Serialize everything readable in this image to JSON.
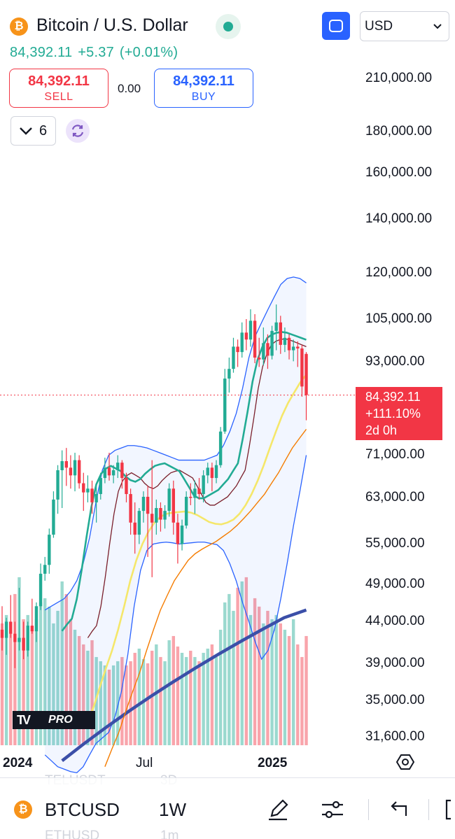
{
  "header": {
    "coin_glyph": "₿",
    "title": "Bitcoin / U.S. Dollar",
    "currency": "USD",
    "last_price": "84,392.11",
    "change": "+5.37",
    "change_pct": "(+0.01%)",
    "sell_price": "84,392.11",
    "sell_label": "SELL",
    "spread": "0.00",
    "buy_price": "84,392.11",
    "buy_label": "BUY",
    "collapse_count": "6"
  },
  "price_axis": [
    "210,000.00",
    "180,000.00",
    "160,000.00",
    "140,000.00",
    "120,000.00",
    "105,000.00",
    "93,000.00",
    "71,000.00",
    "63,000.00",
    "55,000.00",
    "49,000.00",
    "44,000.00",
    "39,000.00",
    "35,000.00",
    "31,600.00"
  ],
  "last_tag": {
    "price": "84,392.11",
    "pct": "+111.10%",
    "countdown": "2d 0h"
  },
  "time_axis": [
    "2024",
    "Jul",
    "2025"
  ],
  "logo": {
    "mark": "TV",
    "pro": "PRO"
  },
  "ghost_rows": [
    {
      "sym": "TELUSDT",
      "tf": "3D"
    },
    {
      "sym": "ETHUSD",
      "tf": "1m"
    }
  ],
  "bottom_bar": {
    "symbol": "BTCUSD",
    "timeframe": "1W"
  },
  "colors": {
    "up": "#22ab94",
    "down": "#f23645",
    "accent": "#2962ff"
  },
  "icons": [
    "bitcoin-icon",
    "live-indicator-icon",
    "fullscreen-icon",
    "chevron-down-icon",
    "sync-icon",
    "settings-icon",
    "draw-pen-icon",
    "indicators-icon",
    "undo-icon"
  ],
  "chart_data": {
    "type": "candlestick",
    "timeframe": "1W",
    "last_price": 84392.11,
    "candles": [
      {
        "o": 43000,
        "h": 46000,
        "l": 40500,
        "c": 42000
      },
      {
        "o": 42000,
        "h": 44500,
        "l": 40000,
        "c": 44000
      },
      {
        "o": 44000,
        "h": 47500,
        "l": 42000,
        "c": 42500
      },
      {
        "o": 42500,
        "h": 44000,
        "l": 38500,
        "c": 41500
      },
      {
        "o": 41500,
        "h": 48500,
        "l": 40500,
        "c": 42000
      },
      {
        "o": 42000,
        "h": 44000,
        "l": 39500,
        "c": 40500
      },
      {
        "o": 40500,
        "h": 44000,
        "l": 39800,
        "c": 43500
      },
      {
        "o": 43500,
        "h": 47000,
        "l": 42500,
        "c": 42800
      },
      {
        "o": 42800,
        "h": 46500,
        "l": 41500,
        "c": 46000
      },
      {
        "o": 46000,
        "h": 52000,
        "l": 45500,
        "c": 50500
      },
      {
        "o": 50500,
        "h": 53000,
        "l": 49500,
        "c": 51800
      },
      {
        "o": 51800,
        "h": 57500,
        "l": 50500,
        "c": 56500
      },
      {
        "o": 56500,
        "h": 64000,
        "l": 56000,
        "c": 62500
      },
      {
        "o": 62500,
        "h": 69000,
        "l": 60000,
        "c": 68000
      },
      {
        "o": 68000,
        "h": 72000,
        "l": 61000,
        "c": 69800
      },
      {
        "o": 69800,
        "h": 72500,
        "l": 65000,
        "c": 68500
      },
      {
        "o": 68500,
        "h": 71000,
        "l": 64500,
        "c": 67000
      },
      {
        "o": 67000,
        "h": 71500,
        "l": 64000,
        "c": 70000
      },
      {
        "o": 70000,
        "h": 71000,
        "l": 64500,
        "c": 65500
      },
      {
        "o": 65500,
        "h": 67500,
        "l": 60500,
        "c": 63800
      },
      {
        "o": 63800,
        "h": 67000,
        "l": 62000,
        "c": 64500
      },
      {
        "o": 64500,
        "h": 66000,
        "l": 60000,
        "c": 62000
      },
      {
        "o": 62000,
        "h": 65000,
        "l": 58500,
        "c": 63500
      },
      {
        "o": 63500,
        "h": 67500,
        "l": 62500,
        "c": 66500
      },
      {
        "o": 66500,
        "h": 70500,
        "l": 65500,
        "c": 68500
      },
      {
        "o": 68500,
        "h": 71500,
        "l": 66000,
        "c": 67000
      },
      {
        "o": 67000,
        "h": 69000,
        "l": 65500,
        "c": 68000
      },
      {
        "o": 68000,
        "h": 71000,
        "l": 66500,
        "c": 69500
      },
      {
        "o": 69500,
        "h": 70000,
        "l": 64500,
        "c": 66500
      },
      {
        "o": 66500,
        "h": 67500,
        "l": 62000,
        "c": 63500
      },
      {
        "o": 63500,
        "h": 64500,
        "l": 56500,
        "c": 58500
      },
      {
        "o": 58500,
        "h": 62000,
        "l": 53500,
        "c": 56500
      },
      {
        "o": 56500,
        "h": 61000,
        "l": 55000,
        "c": 60500
      },
      {
        "o": 60500,
        "h": 64000,
        "l": 58500,
        "c": 63000
      },
      {
        "o": 63000,
        "h": 65000,
        "l": 53000,
        "c": 60000
      },
      {
        "o": 60000,
        "h": 70000,
        "l": 50000,
        "c": 58500
      },
      {
        "o": 58500,
        "h": 62500,
        "l": 56500,
        "c": 61000
      },
      {
        "o": 61000,
        "h": 62000,
        "l": 57000,
        "c": 59000
      },
      {
        "o": 59000,
        "h": 61500,
        "l": 57500,
        "c": 60500
      },
      {
        "o": 60500,
        "h": 65500,
        "l": 59500,
        "c": 64500
      },
      {
        "o": 64500,
        "h": 66000,
        "l": 56500,
        "c": 58500
      },
      {
        "o": 58500,
        "h": 60000,
        "l": 52000,
        "c": 55000
      },
      {
        "o": 55000,
        "h": 59000,
        "l": 54000,
        "c": 58000
      },
      {
        "o": 58000,
        "h": 64000,
        "l": 57500,
        "c": 63000
      },
      {
        "o": 63000,
        "h": 65500,
        "l": 61500,
        "c": 62800
      },
      {
        "o": 62800,
        "h": 66000,
        "l": 60000,
        "c": 64500
      },
      {
        "o": 64500,
        "h": 66500,
        "l": 62500,
        "c": 63500
      },
      {
        "o": 63500,
        "h": 68000,
        "l": 62000,
        "c": 67000
      },
      {
        "o": 67000,
        "h": 69500,
        "l": 65500,
        "c": 68500
      },
      {
        "o": 68500,
        "h": 69500,
        "l": 64000,
        "c": 66500
      },
      {
        "o": 66500,
        "h": 70000,
        "l": 65500,
        "c": 69000
      },
      {
        "o": 69000,
        "h": 77000,
        "l": 68500,
        "c": 76000
      },
      {
        "o": 76000,
        "h": 91000,
        "l": 75500,
        "c": 88500
      },
      {
        "o": 88500,
        "h": 94000,
        "l": 85000,
        "c": 91000
      },
      {
        "o": 91000,
        "h": 99500,
        "l": 90000,
        "c": 97000
      },
      {
        "o": 97000,
        "h": 99000,
        "l": 91500,
        "c": 95500
      },
      {
        "o": 95500,
        "h": 104000,
        "l": 94000,
        "c": 101000
      },
      {
        "o": 101000,
        "h": 105000,
        "l": 96000,
        "c": 99000
      },
      {
        "o": 99000,
        "h": 108000,
        "l": 97000,
        "c": 104500
      },
      {
        "o": 104500,
        "h": 106500,
        "l": 92500,
        "c": 94000
      },
      {
        "o": 94000,
        "h": 99500,
        "l": 91500,
        "c": 93500
      },
      {
        "o": 93500,
        "h": 102500,
        "l": 92000,
        "c": 98000
      },
      {
        "o": 98000,
        "h": 100500,
        "l": 91000,
        "c": 94500
      },
      {
        "o": 94500,
        "h": 103000,
        "l": 93500,
        "c": 101500
      },
      {
        "o": 101500,
        "h": 109500,
        "l": 96000,
        "c": 104000
      },
      {
        "o": 104000,
        "h": 106000,
        "l": 95000,
        "c": 97500
      },
      {
        "o": 97500,
        "h": 102500,
        "l": 95500,
        "c": 99500
      },
      {
        "o": 99500,
        "h": 100500,
        "l": 93500,
        "c": 96000
      },
      {
        "o": 96000,
        "h": 99000,
        "l": 93000,
        "c": 97000
      },
      {
        "o": 97000,
        "h": 98500,
        "l": 91500,
        "c": 96500
      },
      {
        "o": 96500,
        "h": 97500,
        "l": 84000,
        "c": 86500
      },
      {
        "o": 95000,
        "h": 95500,
        "l": 78500,
        "c": 84392
      }
    ],
    "volumes": [
      58,
      62,
      55,
      72,
      80,
      60,
      62,
      55,
      60,
      68,
      70,
      66,
      58,
      64,
      78,
      72,
      60,
      55,
      52,
      48,
      45,
      50,
      42,
      40,
      38,
      36,
      38,
      40,
      42,
      38,
      40,
      44,
      46,
      41,
      39,
      45,
      48,
      42,
      40,
      50,
      52,
      47,
      44,
      42,
      45,
      42,
      40,
      44,
      46,
      48,
      42,
      55,
      68,
      72,
      64,
      75,
      78,
      80,
      62,
      70,
      66,
      58,
      64,
      60,
      62,
      58,
      55,
      52,
      60,
      48,
      42,
      52
    ],
    "bb_upper": [
      45500,
      46000,
      46500,
      47000,
      48000,
      49500,
      52000,
      56000,
      62000,
      68000,
      71000,
      72000,
      72500,
      73000,
      73000,
      72800,
      72500,
      72000,
      71500,
      71000,
      70500,
      70000,
      70000,
      70000,
      70000,
      70000,
      70500,
      71000,
      73000,
      76000,
      80000,
      86000,
      94000,
      100000,
      104000,
      108000,
      112000,
      116000,
      118000,
      118500,
      118000,
      116500
    ],
    "bb_lower": [
      30000,
      29500,
      29000,
      28800,
      28600,
      28500,
      29000,
      30000,
      31000,
      31500,
      32000,
      33500,
      36000,
      40000,
      46000,
      51000,
      54000,
      55000,
      55200,
      55300,
      55200,
      55000,
      55100,
      55200,
      55300,
      55300,
      55100,
      54900,
      54000,
      52000,
      49500,
      46500,
      44000,
      41500,
      39500,
      40500,
      43000,
      47000,
      52000,
      58000,
      64000,
      71000
    ],
    "ma_fast": [
      42000,
      42800,
      43500,
      46000,
      50000,
      55000,
      60000,
      64000,
      66000,
      67000,
      67500,
      67000,
      66500,
      65500,
      64800,
      64500,
      65000,
      66000,
      66800,
      67500,
      67800,
      68000,
      67500,
      67000,
      66500,
      65000,
      63500,
      62000,
      61500,
      61500,
      62000,
      62500,
      63000,
      64000,
      65000,
      66500,
      68000,
      73000,
      79000,
      86000,
      91500,
      95000,
      97500,
      98500,
      99000,
      99200,
      99000,
      98500,
      98000,
      97500,
      97000
    ],
    "ma_mid": [
      33000,
      34500,
      36500,
      38500,
      40500,
      43000,
      46000,
      49500,
      52500,
      55000,
      57000,
      58500,
      59500,
      60000,
      60200,
      60300,
      60400,
      60200,
      59800,
      59200,
      58600,
      58300,
      58200,
      58500,
      59000,
      60000,
      61500,
      63500,
      66000,
      69000,
      72500,
      76000,
      79500,
      82500,
      85000,
      87500,
      89500
    ],
    "ma_slow": [
      29000,
      30500,
      32000,
      34000,
      36000,
      38000,
      40500,
      43000,
      45500,
      47500,
      49500,
      51000,
      52500,
      53500,
      54200,
      54800,
      55400,
      56200,
      57000,
      58000,
      59200,
      60500,
      62000,
      63500,
      65500,
      67500,
      70000,
      72500,
      74500,
      76500
    ],
    "ma_200": [
      29500,
      31000,
      32500,
      34000,
      35500,
      37000,
      38500,
      40000,
      41500,
      43000,
      44500,
      45500
    ]
  }
}
